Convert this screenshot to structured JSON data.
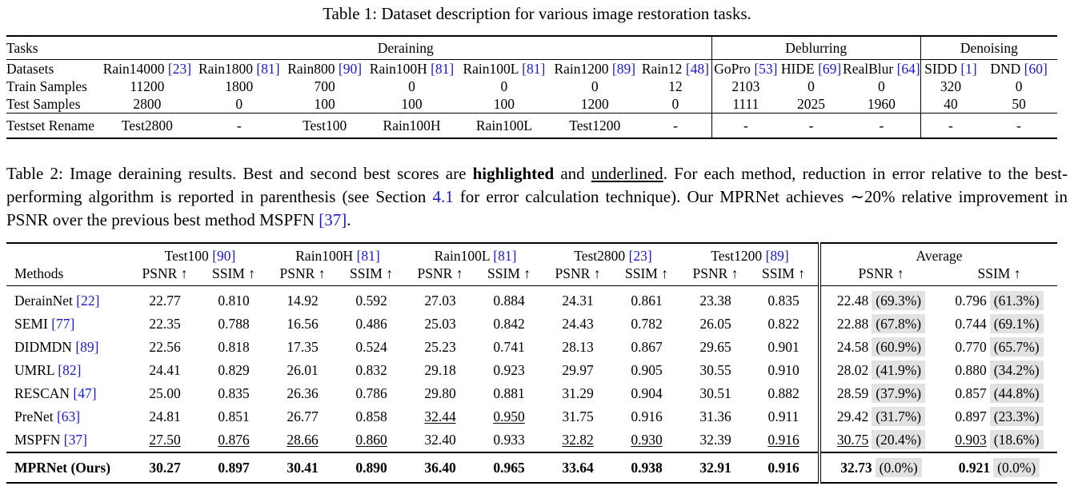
{
  "table1": {
    "caption": "Table 1: Dataset description for various image restoration tasks.",
    "task_label": "Tasks",
    "tasks": [
      "Deraining",
      "Deblurring",
      "Denoising"
    ],
    "datasets_label": "Datasets",
    "datasets": [
      {
        "name": "Rain14000",
        "ref": "[23]"
      },
      {
        "name": "Rain1800",
        "ref": "[81]"
      },
      {
        "name": "Rain800",
        "ref": "[90]"
      },
      {
        "name": "Rain100H",
        "ref": "[81]"
      },
      {
        "name": "Rain100L",
        "ref": "[81]"
      },
      {
        "name": "Rain1200",
        "ref": "[89]"
      },
      {
        "name": "Rain12",
        "ref": "[48]"
      },
      {
        "name": "GoPro",
        "ref": "[53]"
      },
      {
        "name": "HIDE",
        "ref": "[69]"
      },
      {
        "name": "RealBlur",
        "ref": "[64]"
      },
      {
        "name": "SIDD",
        "ref": "[1]"
      },
      {
        "name": "DND",
        "ref": "[60]"
      }
    ],
    "train_label": "Train Samples",
    "train": [
      "11200",
      "1800",
      "700",
      "0",
      "0",
      "0",
      "12",
      "2103",
      "0",
      "0",
      "320",
      "0"
    ],
    "test_label": "Test Samples",
    "test": [
      "2800",
      "0",
      "100",
      "100",
      "100",
      "1200",
      "0",
      "1111",
      "2025",
      "1960",
      "40",
      "50"
    ],
    "rename_label": "Testset Rename",
    "rename": [
      "Test2800",
      "-",
      "Test100",
      "Rain100H",
      "Rain100L",
      "Test1200",
      "-",
      "-",
      "-",
      "-",
      "-",
      "-"
    ]
  },
  "table2": {
    "caption_a": "Table 2: Image deraining results. Best and second best scores are ",
    "caption_b": "highlighted",
    "caption_c": " and ",
    "caption_d": "underlined",
    "caption_e": ". For each method, reduction in error relative to the best-performing algorithm is reported in parenthesis (see Section ",
    "caption_f": "4.1",
    "caption_g": " for error calculation technique). Our MPRNet achieves ∼20% relative improvement in PSNR over the previous best method MSPFN ",
    "caption_h": "[37]",
    "caption_i": ".",
    "methods_label": "Methods",
    "testsets": [
      {
        "name": "Test100",
        "ref": "[90]"
      },
      {
        "name": "Rain100H",
        "ref": "[81]"
      },
      {
        "name": "Rain100L",
        "ref": "[81]"
      },
      {
        "name": "Test2800",
        "ref": "[23]"
      },
      {
        "name": "Test1200",
        "ref": "[89]"
      }
    ],
    "average_label": "Average",
    "psnr_label": "PSNR ↑",
    "ssim_label": "SSIM ↑",
    "rows": [
      {
        "method": "DerainNet",
        "ref": "[22]",
        "vals": [
          "22.77",
          "0.810",
          "14.92",
          "0.592",
          "27.03",
          "0.884",
          "24.31",
          "0.861",
          "23.38",
          "0.835"
        ],
        "avg_psnr": "22.48",
        "avg_psnr_pct": "(69.3%)",
        "avg_ssim": "0.796",
        "avg_ssim_pct": "(61.3%)",
        "ul": []
      },
      {
        "method": "SEMI",
        "ref": "[77]",
        "vals": [
          "22.35",
          "0.788",
          "16.56",
          "0.486",
          "25.03",
          "0.842",
          "24.43",
          "0.782",
          "26.05",
          "0.822"
        ],
        "avg_psnr": "22.88",
        "avg_psnr_pct": "(67.8%)",
        "avg_ssim": "0.744",
        "avg_ssim_pct": "(69.1%)",
        "ul": []
      },
      {
        "method": "DIDMDN",
        "ref": "[89]",
        "vals": [
          "22.56",
          "0.818",
          "17.35",
          "0.524",
          "25.23",
          "0.741",
          "28.13",
          "0.867",
          "29.65",
          "0.901"
        ],
        "avg_psnr": "24.58",
        "avg_psnr_pct": "(60.9%)",
        "avg_ssim": "0.770",
        "avg_ssim_pct": "(65.7%)",
        "ul": []
      },
      {
        "method": "UMRL",
        "ref": "[82]",
        "vals": [
          "24.41",
          "0.829",
          "26.01",
          "0.832",
          "29.18",
          "0.923",
          "29.97",
          "0.905",
          "30.55",
          "0.910"
        ],
        "avg_psnr": "28.02",
        "avg_psnr_pct": "(41.9%)",
        "avg_ssim": "0.880",
        "avg_ssim_pct": "(34.2%)",
        "ul": []
      },
      {
        "method": "RESCAN",
        "ref": "[47]",
        "vals": [
          "25.00",
          "0.835",
          "26.36",
          "0.786",
          "29.80",
          "0.881",
          "31.29",
          "0.904",
          "30.51",
          "0.882"
        ],
        "avg_psnr": "28.59",
        "avg_psnr_pct": "(37.9%)",
        "avg_ssim": "0.857",
        "avg_ssim_pct": "(44.8%)",
        "ul": []
      },
      {
        "method": "PreNet",
        "ref": "[63]",
        "vals": [
          "24.81",
          "0.851",
          "26.77",
          "0.858",
          "32.44",
          "0.950",
          "31.75",
          "0.916",
          "31.36",
          "0.911"
        ],
        "avg_psnr": "29.42",
        "avg_psnr_pct": "(31.7%)",
        "avg_ssim": "0.897",
        "avg_ssim_pct": "(23.3%)",
        "ul": [
          4,
          5
        ]
      },
      {
        "method": "MSPFN",
        "ref": "[37]",
        "vals": [
          "27.50",
          "0.876",
          "28.66",
          "0.860",
          "32.40",
          "0.933",
          "32.82",
          "0.930",
          "32.39",
          "0.916"
        ],
        "avg_psnr": "30.75",
        "avg_psnr_pct": "(20.4%)",
        "avg_ssim": "0.903",
        "avg_ssim_pct": "(18.6%)",
        "ul": [
          0,
          1,
          2,
          3,
          6,
          7,
          9,
          10,
          12
        ]
      }
    ],
    "ours": {
      "method": "MPRNet (Ours)",
      "vals": [
        "30.27",
        "0.897",
        "30.41",
        "0.890",
        "36.40",
        "0.965",
        "33.64",
        "0.938",
        "32.91",
        "0.916"
      ],
      "avg_psnr": "32.73",
      "avg_psnr_pct": "(0.0%)",
      "avg_ssim": "0.921",
      "avg_ssim_pct": "(0.0%)"
    }
  }
}
